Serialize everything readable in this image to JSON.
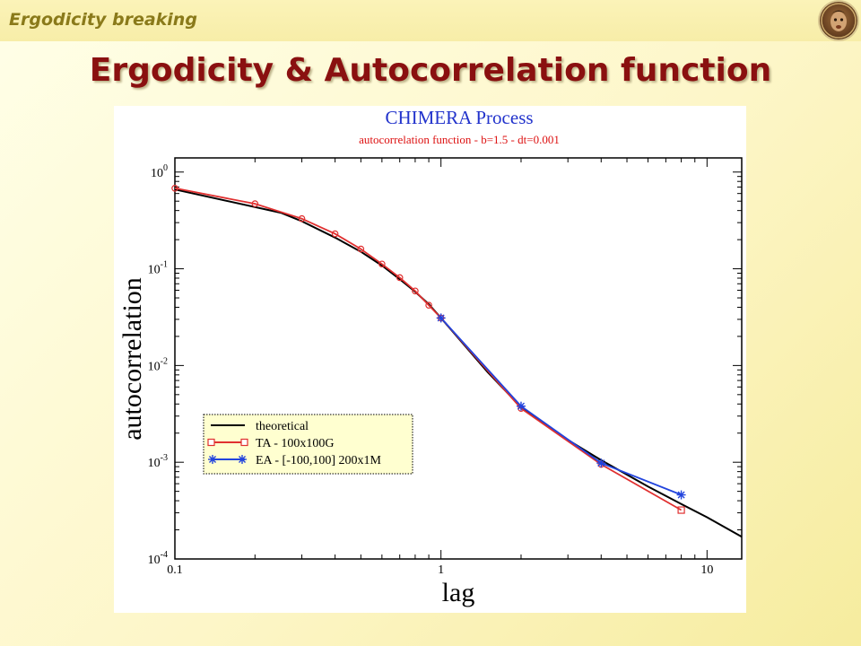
{
  "header": {
    "section_label": "Ergodicity breaking",
    "logo_icon": "medallion-portrait-icon"
  },
  "slide": {
    "title": "Ergodicity & Autocorrelation function"
  },
  "chart_data": {
    "type": "line",
    "title": "CHIMERA Process",
    "subtitle": "autocorrelation function - b=1.5 - dt=0.001",
    "xlabel": "lag",
    "ylabel": "autocorrelation",
    "x_scale": "log",
    "y_scale": "log",
    "xlim": [
      0.1,
      13.5
    ],
    "ylim": [
      0.0001,
      1.4
    ],
    "x_ticks": [
      {
        "value": 0.1,
        "label": "0.1"
      },
      {
        "value": 1,
        "label": "1"
      },
      {
        "value": 10,
        "label": "10"
      }
    ],
    "y_ticks": [
      {
        "value": 1,
        "base": "10",
        "exp": "0"
      },
      {
        "value": 0.1,
        "base": "10",
        "exp": "-1"
      },
      {
        "value": 0.01,
        "base": "10",
        "exp": "-2"
      },
      {
        "value": 0.001,
        "base": "10",
        "exp": "-3"
      },
      {
        "value": 0.0001,
        "base": "10",
        "exp": "-4"
      }
    ],
    "grid": false,
    "legend_position": "bottom-left",
    "series": [
      {
        "name": "theoretical",
        "color": "#000000",
        "marker": "none",
        "x": [
          0.1,
          0.25,
          0.3,
          0.4,
          0.5,
          0.6,
          0.7,
          0.8,
          0.9,
          1,
          1.5,
          2,
          3,
          4,
          6,
          8,
          10,
          13.5
        ],
        "y": [
          0.66,
          0.38,
          0.31,
          0.21,
          0.15,
          0.108,
          0.078,
          0.058,
          0.043,
          0.031,
          0.0085,
          0.0037,
          0.0017,
          0.00105,
          0.00056,
          0.00037,
          0.00027,
          0.00017
        ]
      },
      {
        "name": "TA - 100x100G",
        "color": "#e03030",
        "marker": "circle",
        "end_marker": "square",
        "legend_marker": "square",
        "x": [
          0.1,
          0.2,
          0.3,
          0.4,
          0.5,
          0.6,
          0.7,
          0.8,
          0.9,
          1,
          2,
          4,
          8
        ],
        "y": [
          0.68,
          0.47,
          0.33,
          0.23,
          0.16,
          0.112,
          0.081,
          0.059,
          0.042,
          0.031,
          0.0036,
          0.00095,
          0.00032
        ]
      },
      {
        "name": "EA - [-100,100] 200x1M",
        "color": "#2244dd",
        "marker": "star",
        "x": [
          1,
          2,
          4,
          8
        ],
        "y": [
          0.031,
          0.0038,
          0.00098,
          0.00046
        ]
      }
    ]
  }
}
